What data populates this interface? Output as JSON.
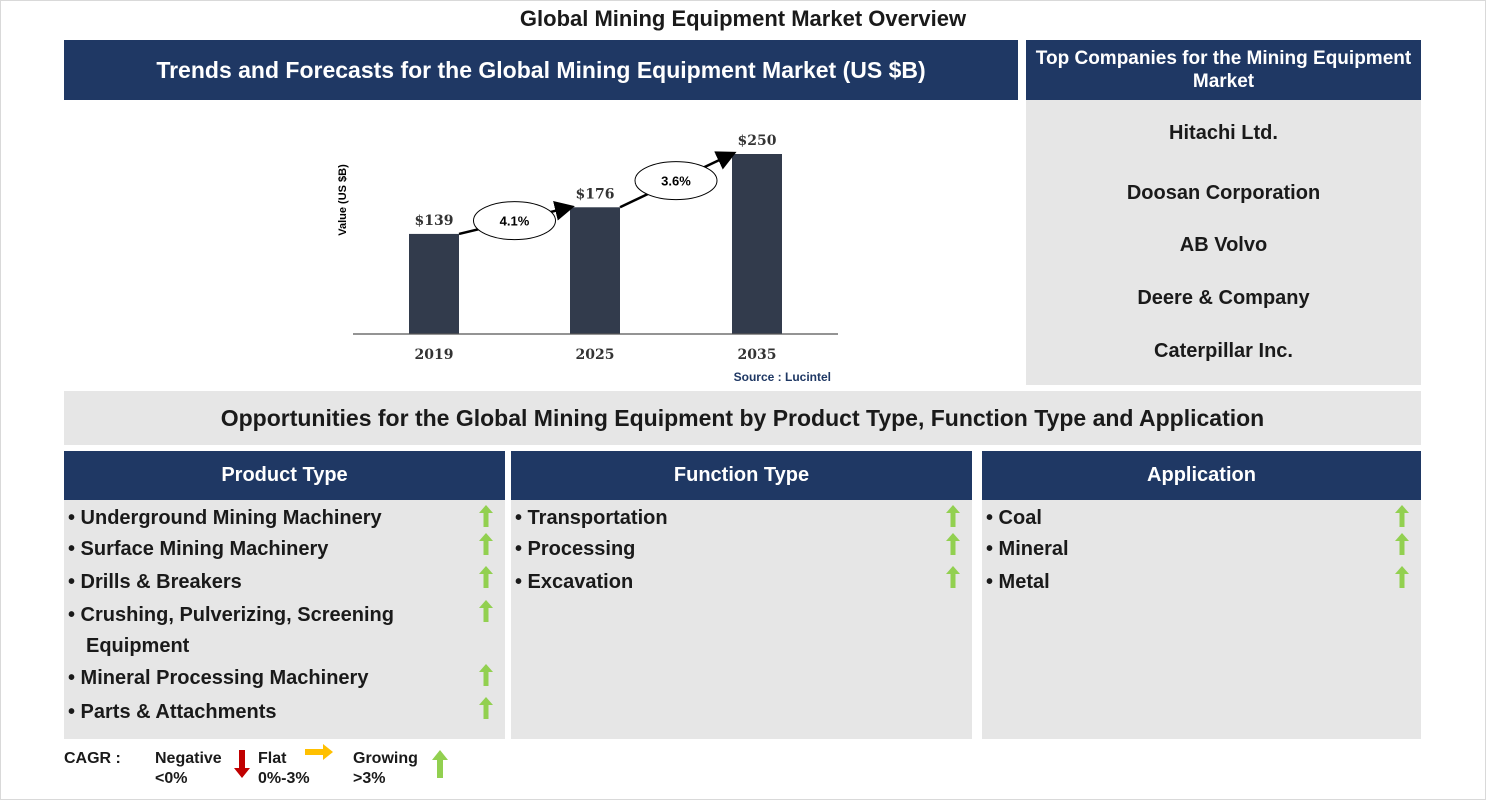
{
  "title": "Global Mining Equipment Market Overview",
  "chart_section": {
    "header": "Trends and Forecasts for the Global Mining Equipment Market (US $B)"
  },
  "chart_data": {
    "type": "bar",
    "categories": [
      "2019",
      "2025",
      "2035"
    ],
    "values": [
      139,
      176,
      250
    ],
    "data_labels": [
      "$139",
      "$176",
      "$250"
    ],
    "ylabel": "Value (US $B)",
    "source": "Source : Lucintel",
    "bar_color": "#323b4c",
    "cagr_annotations": [
      {
        "from": "2019",
        "to": "2025",
        "label": "4.1%"
      },
      {
        "from": "2025",
        "to": "2035",
        "label": "3.6%"
      }
    ]
  },
  "companies": {
    "header": "Top Companies for the Mining Equipment Market",
    "items": [
      "Hitachi Ltd.",
      "Doosan Corporation",
      "AB Volvo",
      "Deere & Company",
      "Caterpillar Inc."
    ]
  },
  "opportunities": {
    "header": "Opportunities for the Global Mining Equipment by Product Type, Function Type and Application"
  },
  "columns": [
    {
      "header": "Product Type",
      "items": [
        {
          "line1": "• Underground Mining Machinery",
          "trend": "up"
        },
        {
          "line1": "• Surface Mining Machinery",
          "trend": "up"
        },
        {
          "line1": "• Drills & Breakers",
          "trend": "up"
        },
        {
          "line1": "• Crushing, Pulverizing, Screening",
          "line2": "Equipment",
          "trend": "up"
        },
        {
          "line1": "• Mineral Processing Machinery",
          "trend": "up"
        },
        {
          "line1": "• Parts & Attachments",
          "trend": "up"
        }
      ]
    },
    {
      "header": "Function Type",
      "items": [
        {
          "line1": "• Transportation",
          "trend": "up"
        },
        {
          "line1": "• Processing",
          "trend": "up"
        },
        {
          "line1": "• Excavation",
          "trend": "up"
        }
      ]
    },
    {
      "header": "Application",
      "items": [
        {
          "line1": "• Coal",
          "trend": "up"
        },
        {
          "line1": "• Mineral",
          "trend": "up"
        },
        {
          "line1": "• Metal",
          "trend": "up"
        }
      ]
    }
  ],
  "legend": {
    "label": "CAGR :",
    "negative": {
      "name": "Negative",
      "range": "<0%"
    },
    "flat": {
      "name": "Flat",
      "range": "0%-3%"
    },
    "growing": {
      "name": "Growing",
      "range": ">3%"
    }
  },
  "colors": {
    "navy": "#1f3864",
    "panel": "#e6e6e6",
    "up": "#92d050",
    "down": "#c00000",
    "flat": "#ffc000"
  }
}
